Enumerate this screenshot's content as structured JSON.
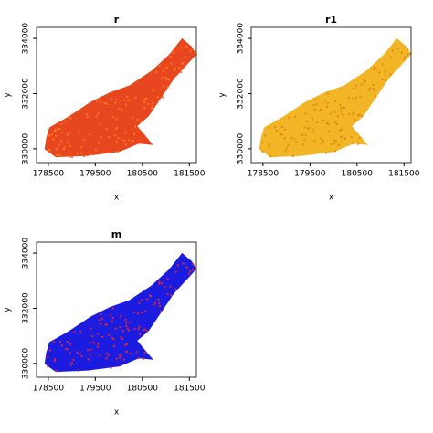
{
  "chart_data": [
    {
      "type": "raster",
      "title": "r",
      "xlabel": "x",
      "ylabel": "y",
      "color": "#e8461e",
      "texture_color": "#f7781e",
      "xlim": [
        178250,
        181650
      ],
      "ylim": [
        329500,
        334400
      ],
      "xticks": [
        178500,
        179500,
        180500,
        181500
      ],
      "yticks": [
        330000,
        332000,
        334000
      ]
    },
    {
      "type": "raster",
      "title": "r1",
      "xlabel": "x",
      "ylabel": "y",
      "color": "#f2b526",
      "texture_color": "#e0891a",
      "xlim": [
        178250,
        181650
      ],
      "ylim": [
        329500,
        334400
      ],
      "xticks": [
        178500,
        179500,
        180500,
        181500
      ],
      "yticks": [
        330000,
        332000,
        334000
      ]
    },
    {
      "type": "raster",
      "title": "m",
      "xlabel": "x",
      "ylabel": "y",
      "color": "#1c1ce0",
      "texture_color": "#d9263a",
      "xlim": [
        178250,
        181650
      ],
      "ylim": [
        329500,
        334400
      ],
      "xticks": [
        178500,
        179500,
        180500,
        181500
      ],
      "yticks": [
        330000,
        332000,
        334000
      ]
    }
  ]
}
